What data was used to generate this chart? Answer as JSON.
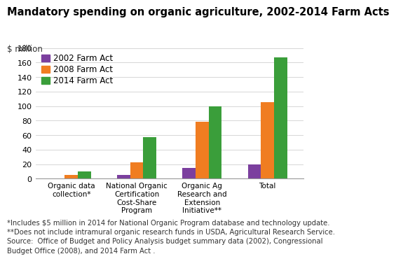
{
  "title": "Mandatory spending on organic agriculture, 2002-2014 Farm Acts",
  "ylabel": "$ million",
  "categories": [
    "Organic data\ncollection*",
    "National Organic\nCertification\nCost-Share\nProgram",
    "Organic Ag\nResearch and\nExtension\nInitiative**",
    "Total"
  ],
  "series": [
    {
      "label": "2002 Farm Act",
      "color": "#7b3f9e",
      "values": [
        0,
        5,
        15,
        20
      ]
    },
    {
      "label": "2008 Farm Act",
      "color": "#f07d21",
      "values": [
        5,
        22,
        78,
        105
      ]
    },
    {
      "label": "2014 Farm Act",
      "color": "#3a9e3a",
      "values": [
        10,
        57,
        100,
        167
      ]
    }
  ],
  "ylim": [
    0,
    180
  ],
  "yticks": [
    0,
    20,
    40,
    60,
    80,
    100,
    120,
    140,
    160,
    180
  ],
  "footnote": "*Includes $5 million in 2014 for National Organic Program database and technology update.\n**Does not include intramural organic research funds in USDA, Agricultural Research Service.\nSource:  Office of Budget and Policy Analysis budget summary data (2002), Congressional\nBudget Office (2008), and 2014 Farm Act .",
  "background_color": "#ffffff",
  "title_fontsize": 10.5,
  "legend_fontsize": 8.5,
  "footnote_fontsize": 7.2,
  "ylabel_fontsize": 8.5
}
